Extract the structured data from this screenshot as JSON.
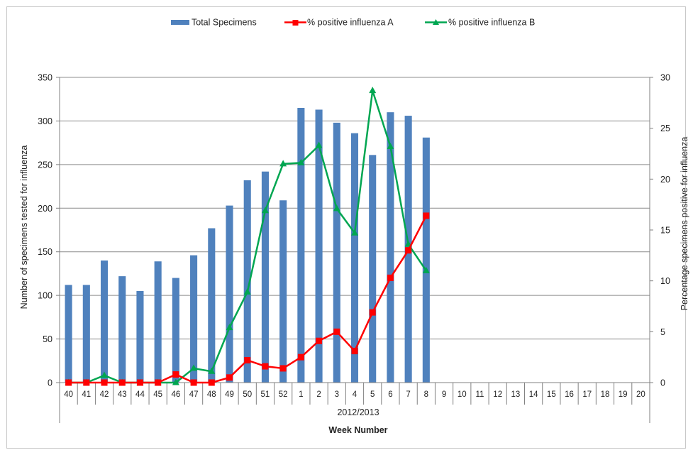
{
  "chart_data": {
    "type": "bar+line",
    "legend": {
      "placement": "top-center",
      "entries": [
        "Total Specimens",
        "% positive influenza A",
        "% positive influenza B"
      ]
    },
    "categories": [
      "40",
      "41",
      "42",
      "43",
      "44",
      "45",
      "46",
      "47",
      "48",
      "49",
      "50",
      "51",
      "52",
      "1",
      "2",
      "3",
      "4",
      "5",
      "6",
      "7",
      "8",
      "9",
      "10",
      "11",
      "12",
      "13",
      "14",
      "15",
      "16",
      "17",
      "18",
      "19",
      "20"
    ],
    "season_label": "2012/2013",
    "xlabel": "Week Number",
    "ylabel_left": "Number of specimens tested for influenza",
    "ylabel_right": "Percentage specimens positive for influenza",
    "ylim_left": [
      0,
      350
    ],
    "ylim_right": [
      0,
      30
    ],
    "yticks_left": [
      0,
      50,
      100,
      150,
      200,
      250,
      300,
      350
    ],
    "yticks_right": [
      0,
      5,
      10,
      15,
      20,
      25,
      30
    ],
    "grid": "horizontal",
    "colors": {
      "bar": "#4f81bd",
      "flu_a": "#ff0000",
      "flu_b": "#00a651",
      "grid": "#8c8c8c"
    },
    "series": [
      {
        "name": "Total Specimens",
        "type": "bar",
        "axis": "left",
        "values": [
          112,
          112,
          140,
          122,
          105,
          139,
          120,
          146,
          177,
          203,
          232,
          242,
          209,
          315,
          313,
          298,
          286,
          261,
          310,
          306,
          281,
          null,
          null,
          null,
          null,
          null,
          null,
          null,
          null,
          null,
          null,
          null,
          null
        ]
      },
      {
        "name": "% positive influenza A",
        "type": "line",
        "axis": "right",
        "marker": "square",
        "values": [
          0,
          0,
          0,
          0,
          0,
          0,
          0.8,
          0,
          0,
          0.5,
          2.2,
          1.6,
          1.4,
          2.5,
          4.1,
          5.0,
          3.1,
          6.9,
          10.3,
          13.0,
          16.4,
          null,
          null,
          null,
          null,
          null,
          null,
          null,
          null,
          null,
          null,
          null,
          null
        ]
      },
      {
        "name": "% positive influenza B",
        "type": "line",
        "axis": "right",
        "marker": "triangle",
        "values": [
          0,
          0,
          0.7,
          0,
          0,
          0,
          0,
          1.4,
          1.1,
          5.4,
          8.9,
          16.9,
          21.5,
          21.6,
          23.3,
          17.1,
          14.7,
          28.7,
          23.2,
          13.6,
          11.0,
          null,
          null,
          null,
          null,
          null,
          null,
          null,
          null,
          null,
          null,
          null,
          null
        ]
      }
    ]
  }
}
